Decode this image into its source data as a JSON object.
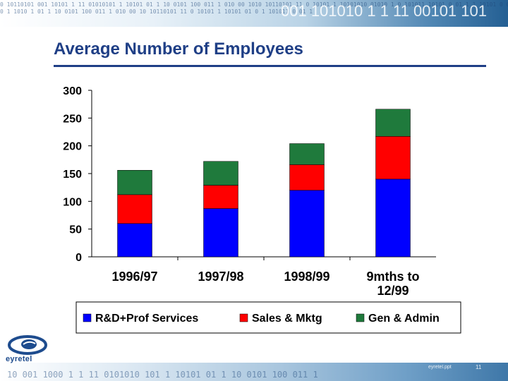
{
  "slide": {
    "title": "Average Number of Employees",
    "logo_text": "eyretel",
    "footer_file": "eyretel.ppt",
    "page_number": "11",
    "header_binary": "0 10110101 001 10101 1 11 01010101 1 10101 01 1 10 0101 100 011 1 010 00 1010 10110101 11 0 10101 1 10101010 01010 1 0 101011 10101 0 01 1 1 10101 0 0101 1",
    "header_binary_row2": "0 1 1010 1 01 1 10 0101 100 011 1 010 00 10 10110101 11 0 10101 1 10101 01 0 1 101011 0 01 1",
    "header_big_binary": "001 101010 1 1 11  00101 101",
    "footer_binary": "10 001 1000 1 1 11 0101010 101 1 10101 01 1 10 0101 100 011 1"
  },
  "colors": {
    "rd": "#0000ff",
    "sales": "#ff0000",
    "admin": "#1f7a3c",
    "title": "#1f3f86"
  },
  "chart_data": {
    "type": "bar",
    "stacked": true,
    "title": "",
    "categories": [
      [
        "1996/97"
      ],
      [
        "1997/98"
      ],
      [
        "1998/99"
      ],
      [
        "9mths to",
        "12/99"
      ]
    ],
    "series": [
      {
        "name": "R&D+Prof Services",
        "values": [
          60,
          87,
          120,
          140
        ]
      },
      {
        "name": "Sales & Mktg",
        "values": [
          52,
          42,
          46,
          77
        ]
      },
      {
        "name": "Gen & Admin",
        "values": [
          44,
          43,
          38,
          49
        ]
      }
    ],
    "ylim": [
      0,
      300
    ],
    "yticks": [
      0,
      50,
      100,
      150,
      200,
      250,
      300
    ],
    "xlabel": "",
    "ylabel": "",
    "grid": false,
    "legend_position": "bottom"
  }
}
